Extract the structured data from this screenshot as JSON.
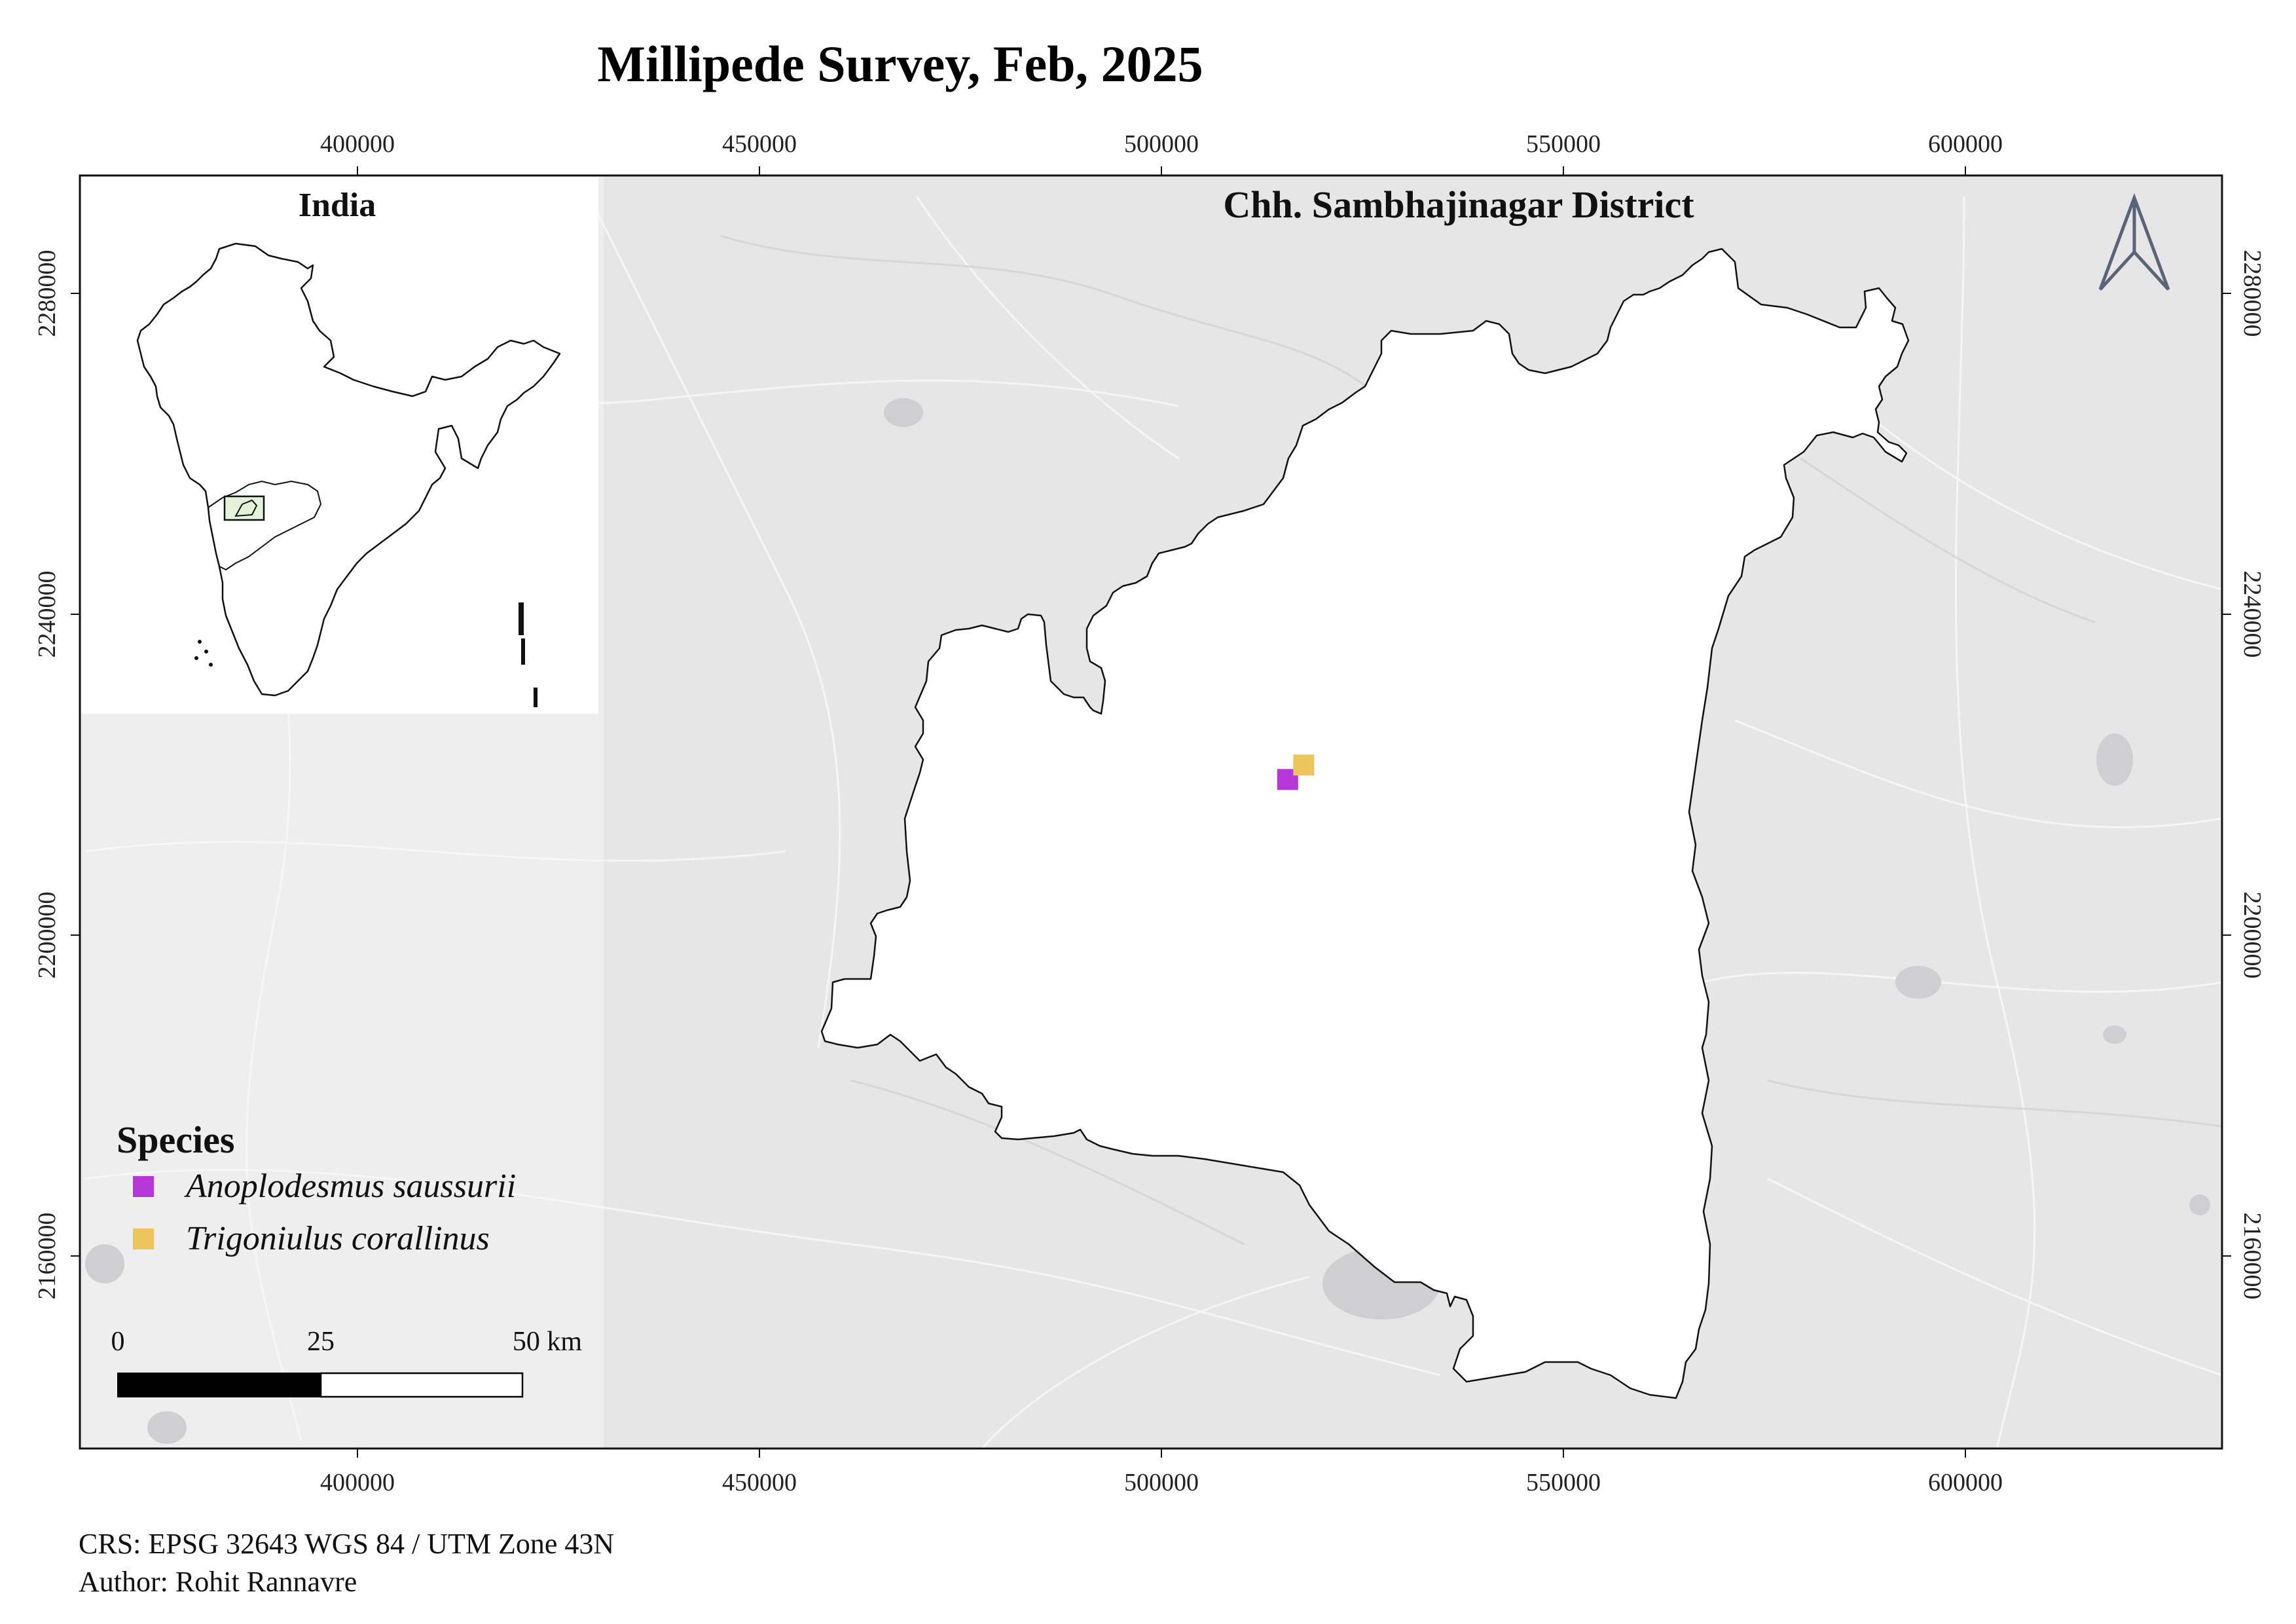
{
  "title": "Millipede Survey, Feb, 2025",
  "map_title": "Chh. Sambhajinagar District",
  "inset": {
    "title": "India"
  },
  "axes": {
    "x_ticks": [
      "400000",
      "450000",
      "500000",
      "550000",
      "600000"
    ],
    "y_ticks": [
      "2280000",
      "2240000",
      "2200000",
      "2160000"
    ]
  },
  "legend": {
    "title": "Species",
    "items": [
      {
        "label": "Anoplodesmus saussurii",
        "color": "#b637d8"
      },
      {
        "label": "Trigoniulus corallinus",
        "color": "#ecc55c"
      }
    ]
  },
  "scale_bar": {
    "labels": [
      "0",
      "25",
      "50 km"
    ]
  },
  "north_arrow": {
    "icon": "north-arrow-icon",
    "color": "#5a6478"
  },
  "footer": {
    "crs": "CRS: EPSG 32643 WGS 84 / UTM Zone 43N",
    "author": "Author: Rohit Rannavre"
  },
  "points": [
    {
      "species": "Anoplodesmus saussurii",
      "easting": 515700,
      "northing": 2219400,
      "color": "#b637d8"
    },
    {
      "species": "Trigoniulus corallinus",
      "easting": 517700,
      "northing": 2221200,
      "color": "#ecc55c"
    }
  ],
  "colors": {
    "basemap": "#e6e6e7",
    "district_fill": "#ffffff",
    "outline": "#111111"
  }
}
